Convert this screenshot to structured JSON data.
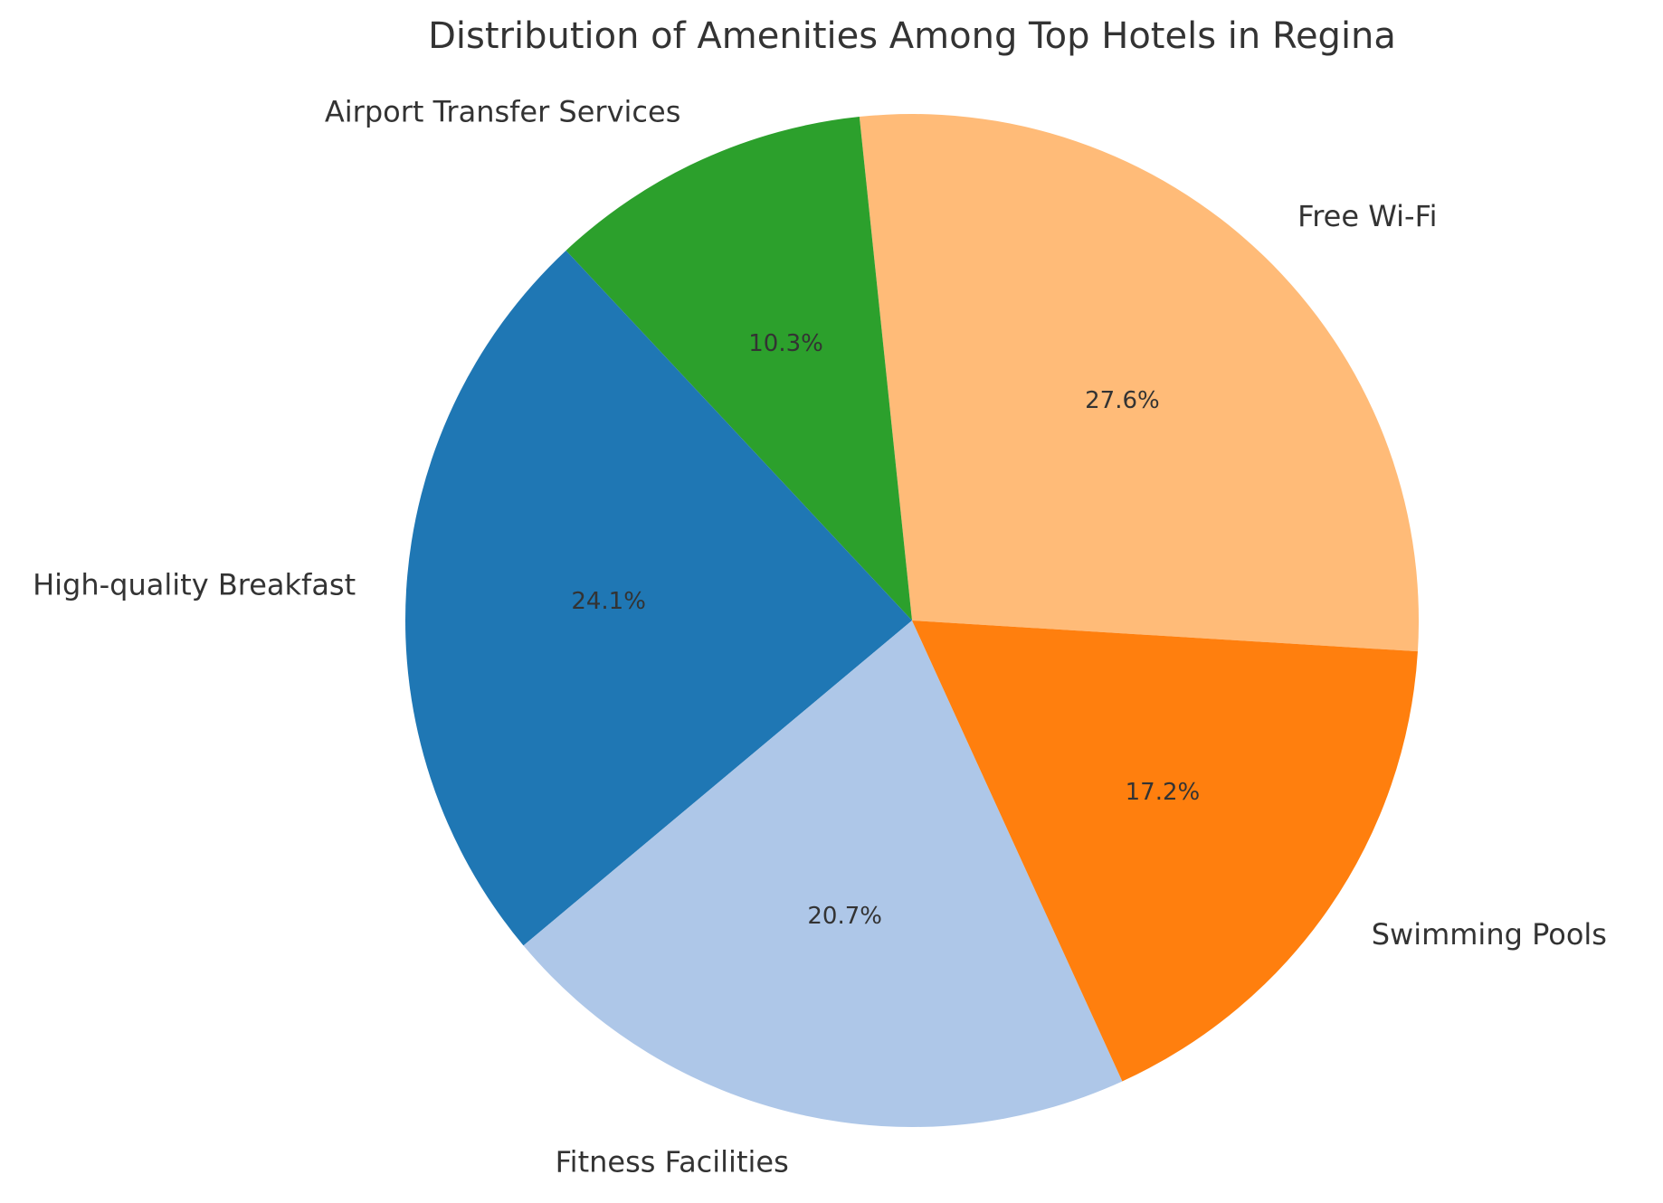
{
  "chart_data": {
    "type": "pie",
    "title": "Distribution of Amenities Among Top Hotels in Regina",
    "slices": [
      {
        "label": "Free Wi-Fi",
        "value": 27.6,
        "pct_label": "27.6%",
        "color": "#ffbb78"
      },
      {
        "label": "Airport Transfer Services",
        "value": 10.3,
        "pct_label": "10.3%",
        "color": "#2ca02c"
      },
      {
        "label": "High-quality Breakfast",
        "value": 24.1,
        "pct_label": "24.1%",
        "color": "#1f77b4"
      },
      {
        "label": "Fitness Facilities",
        "value": 20.7,
        "pct_label": "20.7%",
        "color": "#aec7e8"
      },
      {
        "label": "Swimming Pools",
        "value": 17.2,
        "pct_label": "17.2%",
        "color": "#ff7f0e"
      }
    ],
    "start_angle_deg": -3.5,
    "direction": "counterclockwise"
  }
}
